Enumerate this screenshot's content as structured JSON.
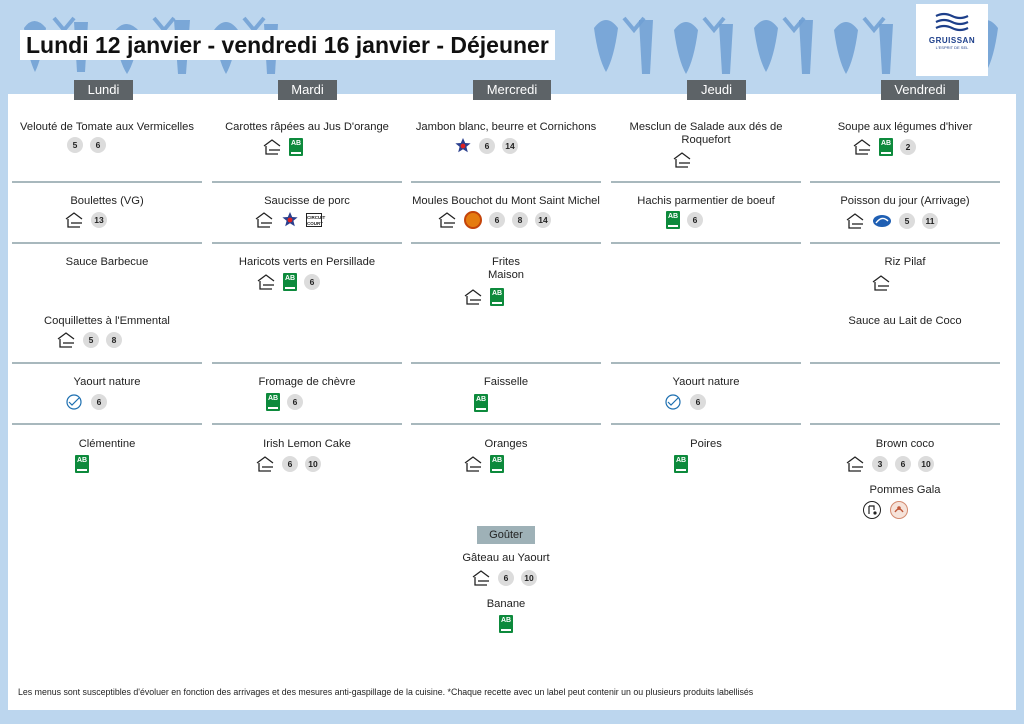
{
  "header": {
    "title": "Lundi 12 janvier - vendredi 16 janvier  - Déjeuner",
    "logo_name": "GRUISSAN",
    "logo_subtitle": "L'ESPRIT DE SEL"
  },
  "days": [
    "Lundi",
    "Mardi",
    "Mercredi",
    "Jeudi",
    "Vendredi"
  ],
  "menu": {
    "lundi": [
      {
        "name": "Velouté de Tomate aux Vermicelles",
        "badges": [
          "5",
          "6"
        ]
      },
      {
        "name": "Boulettes (VG)",
        "badges": [
          "13"
        ]
      },
      {
        "name": "Sauce Barbecue",
        "badges": []
      },
      {
        "name": "Coquillettes à l'Emmental",
        "badges": [
          "5",
          "8"
        ]
      },
      {
        "name": "Yaourt nature",
        "badges": [
          "6"
        ]
      },
      {
        "name": "Clémentine",
        "badges": []
      }
    ],
    "mardi": [
      {
        "name": "Carottes râpées au Jus D'orange",
        "badges": []
      },
      {
        "name": "Saucisse de porc",
        "badges": [],
        "circuit_court": "CIRCUIT COURT"
      },
      {
        "name": "Haricots verts en Persillade",
        "badges": [
          "6"
        ]
      },
      {
        "name": "Fromage de chèvre",
        "badges": [
          "6"
        ]
      },
      {
        "name": "Irish Lemon Cake",
        "badges": [
          "6",
          "10"
        ]
      }
    ],
    "mercredi": [
      {
        "name": "Jambon blanc, beurre et Cornichons",
        "badges": [
          "6",
          "14"
        ]
      },
      {
        "name": "Moules Bouchot du Mont Saint Michel",
        "badges": [
          "6",
          "8",
          "14"
        ]
      },
      {
        "name_line1": "Frites",
        "name_line2": "Maison",
        "badges": []
      },
      {
        "name": "Faisselle",
        "badges": []
      },
      {
        "name": "Oranges",
        "badges": []
      }
    ],
    "jeudi": [
      {
        "name_line1": "Mesclun de Salade aux dés de",
        "name_line2": "Roquefort",
        "badges": []
      },
      {
        "name": "Hachis parmentier de boeuf",
        "badges": [
          "6"
        ]
      },
      {
        "name": "Yaourt nature",
        "badges": [
          "6"
        ]
      },
      {
        "name": "Poires",
        "badges": []
      }
    ],
    "vendredi": [
      {
        "name": "Soupe aux légumes d'hiver",
        "badges": [
          "2"
        ]
      },
      {
        "name": "Poisson du jour (Arrivage)",
        "badges": [
          "5",
          "11"
        ]
      },
      {
        "name": "Riz Pilaf",
        "badges": []
      },
      {
        "name": "Sauce au Lait de Coco",
        "badges": []
      },
      {
        "name": "Brown coco",
        "badges": [
          "3",
          "6",
          "10"
        ]
      },
      {
        "name": "Pommes Gala",
        "badges": []
      }
    ]
  },
  "gouter": {
    "label": "Goûter",
    "items": [
      {
        "name": "Gâteau au Yaourt",
        "badges": [
          "6",
          "10"
        ]
      },
      {
        "name": "Banane",
        "badges": []
      }
    ]
  },
  "labels": {
    "ab": "AB"
  },
  "footer": "Les menus sont susceptibles d'évoluer en fonction des arrivages et des mesures anti-gaspillage de la cuisine. *Chaque recette avec un label peut contenir un ou plusieurs produits labellisés",
  "colors": {
    "background": "#bcd6ee",
    "day_label": "#5d6367",
    "divider": "#a8b8bd",
    "gouter_label": "#9eb1b7",
    "bio_green": "#0d8a3c"
  }
}
